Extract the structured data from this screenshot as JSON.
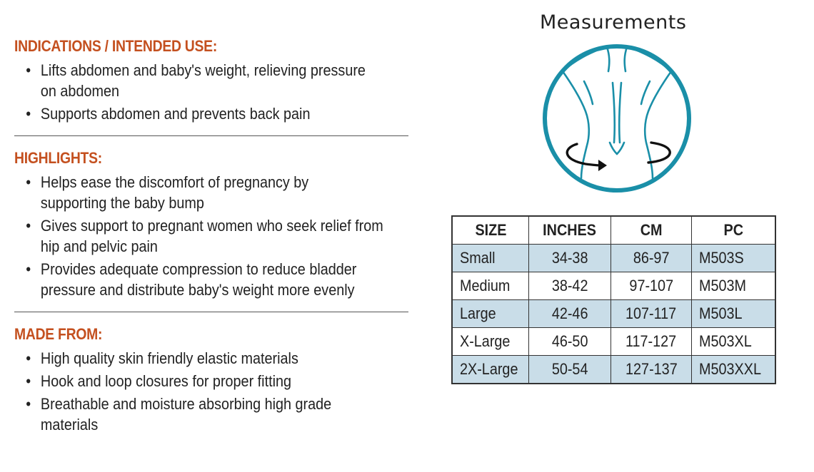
{
  "sections": [
    {
      "title": "INDICATIONS / INTENDED USE:",
      "items": [
        "Lifts abdomen and baby's weight, relieving pressure on abdomen",
        "Supports abdomen and prevents back pain"
      ]
    },
    {
      "title": "HIGHLIGHTS:",
      "items": [
        "Helps ease the discomfort of pregnancy by supporting the baby bump",
        "Gives support to pregnant women who seek relief from hip and pelvic pain",
        "Provides adequate compression to reduce bladder pressure and distribute baby's weight more evenly"
      ]
    },
    {
      "title": "MADE FROM:",
      "items": [
        "High quality skin friendly elastic materials",
        "Hook and loop closures for proper fitting",
        "Breathable and moisture absorbing high grade materials"
      ]
    }
  ],
  "measurements": {
    "title": "Measurements",
    "icon": "waist-measurement-icon",
    "accent_color": "#1a8fa8"
  },
  "size_table": {
    "headers": [
      "SIZE",
      "INCHES",
      "CM",
      "PC"
    ],
    "rows": [
      [
        "Small",
        "34-38",
        "86-97",
        "M503S"
      ],
      [
        "Medium",
        "38-42",
        "97-107",
        "M503M"
      ],
      [
        "Large",
        "42-46",
        "107-117",
        "M503L"
      ],
      [
        "X-Large",
        "46-50",
        "117-127",
        "M503XL"
      ],
      [
        "2X-Large",
        "50-54",
        "127-137",
        "M503XXL"
      ]
    ],
    "shaded_color": "#c9dde8"
  }
}
